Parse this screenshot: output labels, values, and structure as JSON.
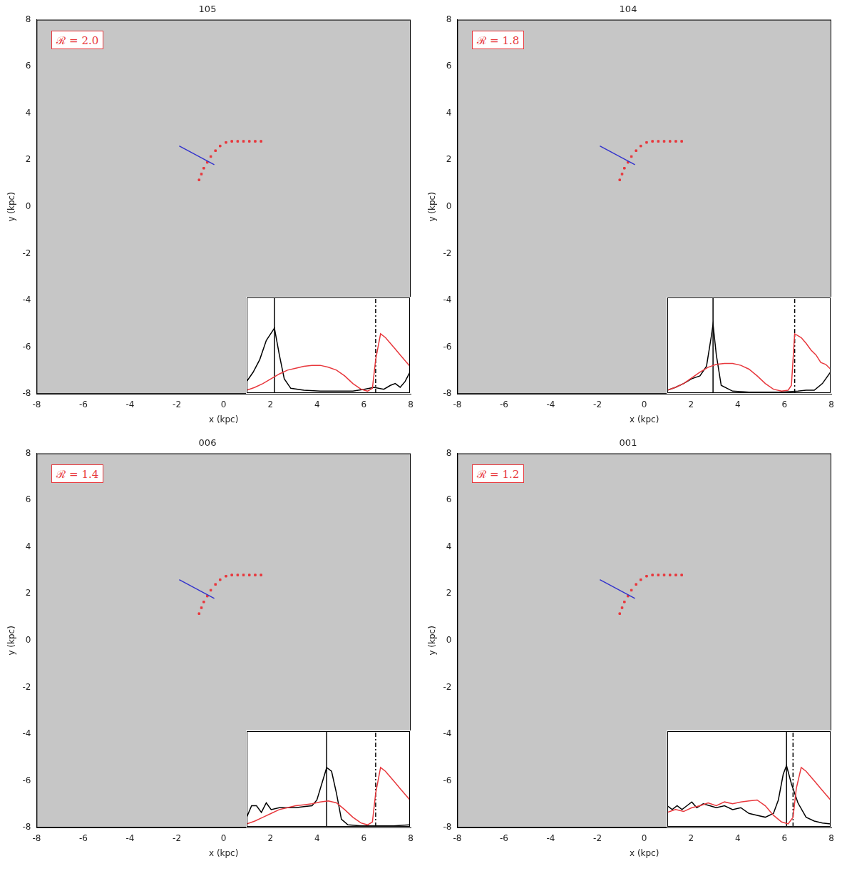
{
  "chart_data": [
    {
      "type": "scatter",
      "title": "105",
      "annotation": "ℛ = 2.0",
      "x_label": "x (kpc)",
      "y_label": "y (kpc)",
      "xlim": [
        -8,
        8
      ],
      "ylim": [
        -8,
        8
      ],
      "xticks": [
        -8,
        -6,
        -4,
        -2,
        0,
        2,
        4,
        6,
        8
      ],
      "yticks": [
        -8,
        -6,
        -4,
        -2,
        0,
        2,
        4,
        6,
        8
      ],
      "grid": false,
      "series": [
        {
          "type": "line",
          "color": "#3333cc",
          "line_style": "solid",
          "x": [
            -1.9,
            -0.4
          ],
          "values": [
            2.6,
            1.8
          ]
        },
        {
          "type": "scatter",
          "color": "#e8383d",
          "marker": "square",
          "x": [
            -1.05,
            -0.95,
            -0.85,
            -0.7,
            -0.55,
            -0.35,
            -0.15,
            0.1,
            0.35,
            0.6,
            0.85,
            1.1,
            1.35,
            1.6
          ],
          "values": [
            1.15,
            1.4,
            1.65,
            1.9,
            2.15,
            2.4,
            2.6,
            2.75,
            2.8,
            2.8,
            2.8,
            2.8,
            2.8,
            2.8
          ]
        }
      ],
      "inset": {
        "type": "line",
        "xlim": [
          0,
          100
        ],
        "ylim": [
          0,
          100
        ],
        "tick_labels": false,
        "grid": false,
        "series": [
          {
            "color": "#e8383d",
            "line_style": "solid",
            "x": [
              0,
              5,
              10,
              15,
              20,
              25,
              30,
              35,
              40,
              45,
              50,
              55,
              60,
              65,
              70,
              74,
              77,
              79,
              82,
              85,
              88,
              91,
              94,
              97,
              100
            ],
            "values": [
              3,
              6,
              10,
              15,
              20,
              24,
              26,
              28,
              29,
              29,
              27,
              24,
              18,
              10,
              4,
              2,
              5,
              35,
              62,
              58,
              52,
              46,
              40,
              34,
              28
            ]
          },
          {
            "color": "#000000",
            "line_style": "solid",
            "x": [
              0,
              4,
              8,
              12,
              17,
              20,
              23,
              27,
              35,
              45,
              55,
              65,
              72,
              78,
              84,
              88,
              91,
              94,
              97,
              100
            ],
            "values": [
              12,
              22,
              35,
              55,
              68,
              40,
              15,
              5,
              3,
              2,
              2,
              2,
              4,
              6,
              4,
              8,
              10,
              6,
              12,
              22
            ]
          },
          {
            "color": "#000000",
            "line_style": "solid",
            "x": [
              17,
              17
            ],
            "values": [
              0,
              100
            ]
          },
          {
            "color": "#000000",
            "line_style": "dashdot",
            "x": [
              79,
              79
            ],
            "values": [
              0,
              100
            ]
          }
        ]
      }
    },
    {
      "type": "scatter",
      "title": "104",
      "annotation": "ℛ = 1.8",
      "x_label": "x (kpc)",
      "y_label": "y (kpc)",
      "xlim": [
        -8,
        8
      ],
      "ylim": [
        -8,
        8
      ],
      "xticks": [
        -8,
        -6,
        -4,
        -2,
        0,
        2,
        4,
        6,
        8
      ],
      "yticks": [
        -8,
        -6,
        -4,
        -2,
        0,
        2,
        4,
        6,
        8
      ],
      "grid": false,
      "series": [
        {
          "type": "line",
          "color": "#3333cc",
          "line_style": "solid",
          "x": [
            -1.9,
            -0.4
          ],
          "values": [
            2.6,
            1.8
          ]
        },
        {
          "type": "scatter",
          "color": "#e8383d",
          "marker": "square",
          "x": [
            -1.05,
            -0.95,
            -0.85,
            -0.7,
            -0.55,
            -0.35,
            -0.15,
            0.1,
            0.35,
            0.6,
            0.85,
            1.1,
            1.35,
            1.6
          ],
          "values": [
            1.15,
            1.4,
            1.65,
            1.9,
            2.15,
            2.4,
            2.6,
            2.75,
            2.8,
            2.8,
            2.8,
            2.8,
            2.8,
            2.8
          ]
        }
      ],
      "inset": {
        "type": "line",
        "xlim": [
          0,
          100
        ],
        "ylim": [
          0,
          100
        ],
        "tick_labels": false,
        "grid": false,
        "series": [
          {
            "color": "#e8383d",
            "line_style": "solid",
            "x": [
              0,
              5,
              10,
              15,
              20,
              25,
              30,
              35,
              40,
              45,
              50,
              55,
              60,
              65,
              70,
              74,
              76,
              78,
              82,
              85,
              88,
              91,
              94,
              97,
              100
            ],
            "values": [
              3,
              6,
              10,
              16,
              22,
              27,
              30,
              31,
              31,
              29,
              25,
              18,
              10,
              4,
              2,
              3,
              8,
              62,
              58,
              52,
              45,
              40,
              32,
              30,
              25
            ]
          },
          {
            "color": "#000000",
            "line_style": "solid",
            "x": [
              0,
              5,
              10,
              15,
              20,
              24,
              27,
              28,
              30,
              33,
              40,
              50,
              60,
              70,
              80,
              85,
              90,
              95,
              100
            ],
            "values": [
              3,
              6,
              10,
              15,
              18,
              28,
              60,
              72,
              40,
              8,
              2,
              1,
              1,
              1,
              2,
              3,
              3,
              10,
              22
            ]
          },
          {
            "color": "#000000",
            "line_style": "solid",
            "x": [
              28,
              28
            ],
            "values": [
              0,
              100
            ]
          },
          {
            "color": "#000000",
            "line_style": "dashdot",
            "x": [
              78,
              78
            ],
            "values": [
              0,
              100
            ]
          }
        ]
      }
    },
    {
      "type": "scatter",
      "title": "006",
      "annotation": "ℛ = 1.4",
      "x_label": "x (kpc)",
      "y_label": "y (kpc)",
      "xlim": [
        -8,
        8
      ],
      "ylim": [
        -8,
        8
      ],
      "xticks": [
        -8,
        -6,
        -4,
        -2,
        0,
        2,
        4,
        6,
        8
      ],
      "yticks": [
        -8,
        -6,
        -4,
        -2,
        0,
        2,
        4,
        6,
        8
      ],
      "grid": false,
      "series": [
        {
          "type": "line",
          "color": "#3333cc",
          "line_style": "solid",
          "x": [
            -1.9,
            -0.4
          ],
          "values": [
            2.6,
            1.8
          ]
        },
        {
          "type": "scatter",
          "color": "#e8383d",
          "marker": "square",
          "x": [
            -1.05,
            -0.95,
            -0.85,
            -0.7,
            -0.55,
            -0.35,
            -0.15,
            0.1,
            0.35,
            0.6,
            0.85,
            1.1,
            1.35,
            1.6
          ],
          "values": [
            1.15,
            1.4,
            1.65,
            1.9,
            2.15,
            2.4,
            2.6,
            2.75,
            2.8,
            2.8,
            2.8,
            2.8,
            2.8,
            2.8
          ]
        }
      ],
      "inset": {
        "type": "line",
        "xlim": [
          0,
          100
        ],
        "ylim": [
          0,
          100
        ],
        "tick_labels": false,
        "grid": false,
        "series": [
          {
            "color": "#e8383d",
            "line_style": "solid",
            "x": [
              0,
              5,
              10,
              15,
              20,
              25,
              30,
              35,
              40,
              45,
              50,
              55,
              60,
              65,
              70,
              74,
              77,
              79,
              82,
              85,
              88,
              91,
              94,
              97,
              100
            ],
            "values": [
              3,
              6,
              10,
              14,
              18,
              20,
              22,
              23,
              24,
              26,
              27,
              25,
              18,
              10,
              4,
              2,
              5,
              35,
              62,
              58,
              52,
              46,
              40,
              34,
              28
            ]
          },
          {
            "color": "#000000",
            "line_style": "solid",
            "x": [
              0,
              3,
              6,
              9,
              12,
              15,
              20,
              25,
              30,
              35,
              40,
              43,
              46,
              49,
              52,
              55,
              58,
              62,
              70,
              80,
              90,
              100
            ],
            "values": [
              10,
              22,
              22,
              15,
              25,
              18,
              20,
              20,
              20,
              21,
              22,
              28,
              45,
              62,
              58,
              35,
              8,
              2,
              1,
              1,
              1,
              2
            ]
          },
          {
            "color": "#000000",
            "line_style": "solid",
            "x": [
              49,
              49
            ],
            "values": [
              0,
              100
            ]
          },
          {
            "color": "#000000",
            "line_style": "dashdot",
            "x": [
              79,
              79
            ],
            "values": [
              0,
              100
            ]
          }
        ]
      }
    },
    {
      "type": "scatter",
      "title": "001",
      "annotation": "ℛ = 1.2",
      "x_label": "x (kpc)",
      "y_label": "y (kpc)",
      "xlim": [
        -8,
        8
      ],
      "ylim": [
        -8,
        8
      ],
      "xticks": [
        -8,
        -6,
        -4,
        -2,
        0,
        2,
        4,
        6,
        8
      ],
      "yticks": [
        -8,
        -6,
        -4,
        -2,
        0,
        2,
        4,
        6,
        8
      ],
      "grid": false,
      "series": [
        {
          "type": "line",
          "color": "#3333cc",
          "line_style": "solid",
          "x": [
            -1.9,
            -0.4
          ],
          "values": [
            2.6,
            1.8
          ]
        },
        {
          "type": "scatter",
          "color": "#e8383d",
          "marker": "square",
          "x": [
            -1.05,
            -0.95,
            -0.85,
            -0.7,
            -0.55,
            -0.35,
            -0.15,
            0.1,
            0.35,
            0.6,
            0.85,
            1.1,
            1.35,
            1.6
          ],
          "values": [
            1.15,
            1.4,
            1.65,
            1.9,
            2.15,
            2.4,
            2.6,
            2.75,
            2.8,
            2.8,
            2.8,
            2.8,
            2.8,
            2.8
          ]
        }
      ],
      "inset": {
        "type": "line",
        "xlim": [
          0,
          100
        ],
        "ylim": [
          0,
          100
        ],
        "tick_labels": false,
        "grid": false,
        "series": [
          {
            "color": "#e8383d",
            "line_style": "solid",
            "x": [
              0,
              5,
              10,
              15,
              20,
              25,
              30,
              35,
              40,
              45,
              50,
              55,
              60,
              65,
              70,
              74,
              77,
              79,
              82,
              85,
              88,
              91,
              94,
              97,
              100
            ],
            "values": [
              15,
              18,
              16,
              20,
              22,
              25,
              22,
              26,
              24,
              26,
              27,
              28,
              22,
              12,
              5,
              3,
              10,
              40,
              62,
              58,
              52,
              46,
              40,
              34,
              28
            ]
          },
          {
            "color": "#000000",
            "line_style": "solid",
            "x": [
              0,
              3,
              6,
              9,
              12,
              15,
              18,
              22,
              26,
              30,
              35,
              40,
              45,
              50,
              55,
              60,
              65,
              68,
              71,
              73,
              76,
              80,
              85,
              90,
              95,
              100
            ],
            "values": [
              22,
              18,
              22,
              18,
              22,
              26,
              20,
              24,
              22,
              20,
              22,
              18,
              20,
              14,
              12,
              10,
              14,
              28,
              55,
              64,
              45,
              25,
              10,
              6,
              4,
              3
            ]
          },
          {
            "color": "#000000",
            "line_style": "solid",
            "x": [
              73,
              73
            ],
            "values": [
              0,
              100
            ]
          },
          {
            "color": "#000000",
            "line_style": "dashdot",
            "x": [
              77,
              77
            ],
            "values": [
              0,
              100
            ]
          }
        ]
      }
    }
  ]
}
